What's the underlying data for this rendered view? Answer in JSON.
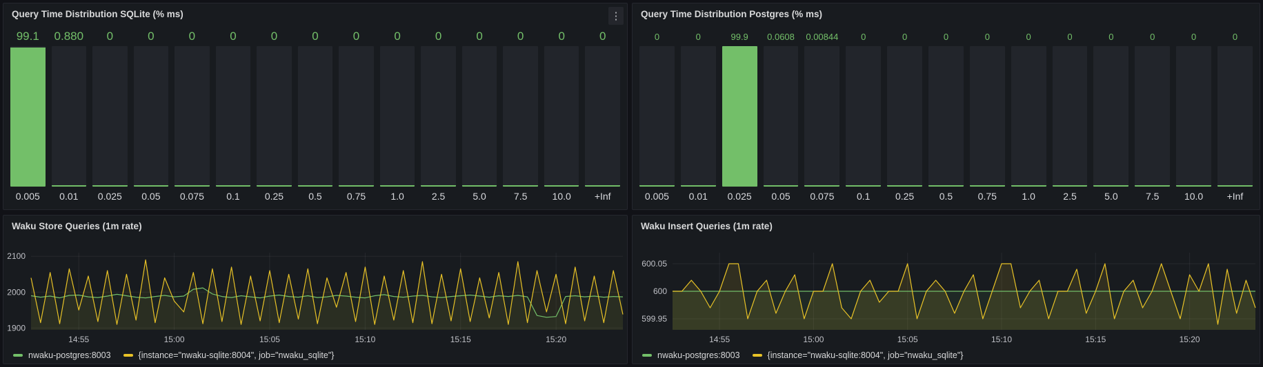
{
  "colors": {
    "green": "#73bf69",
    "yellow": "#e8c227",
    "panel_bg": "#181b1f",
    "page_bg": "#111217",
    "bar_unfilled": "#22252b",
    "value_text": "#73bf69"
  },
  "panels": [
    {
      "title": "Query Time Distribution SQLite (% ms)",
      "menu_icon": "kebab-menu-icon",
      "menu_glyph": "⋮"
    },
    {
      "title": "Query Time Distribution Postgres (% ms)"
    },
    {
      "title": "Waku Store Queries (1m rate)",
      "legend": [
        {
          "label": "nwaku-postgres:8003",
          "color": "#73bf69"
        },
        {
          "label": "{instance=\"nwaku-sqlite:8004\", job=\"nwaku_sqlite\"}",
          "color": "#e8c227"
        }
      ]
    },
    {
      "title": "Waku Insert Queries (1m rate)",
      "legend": [
        {
          "label": "nwaku-postgres:8003",
          "color": "#73bf69"
        },
        {
          "label": "{instance=\"nwaku-sqlite:8004\", job=\"nwaku_sqlite\"}",
          "color": "#e8c227"
        }
      ]
    }
  ],
  "chart_data": [
    {
      "type": "bar",
      "title": "Query Time Distribution SQLite (% ms)",
      "categories": [
        "0.005",
        "0.01",
        "0.025",
        "0.05",
        "0.075",
        "0.1",
        "0.25",
        "0.5",
        "0.75",
        "1.0",
        "2.5",
        "5.0",
        "7.5",
        "10.0",
        "+Inf"
      ],
      "values": [
        99.1,
        0.88,
        0,
        0,
        0,
        0,
        0,
        0,
        0,
        0,
        0,
        0,
        0,
        0,
        0
      ],
      "value_labels": [
        "99.1",
        "0.880",
        "0",
        "0",
        "0",
        "0",
        "0",
        "0",
        "0",
        "0",
        "0",
        "0",
        "0",
        "0",
        "0"
      ],
      "ylim": [
        0,
        100
      ],
      "bar_color": "#73bf69"
    },
    {
      "type": "bar",
      "title": "Query Time Distribution Postgres (% ms)",
      "categories": [
        "0.005",
        "0.01",
        "0.025",
        "0.05",
        "0.075",
        "0.1",
        "0.25",
        "0.5",
        "0.75",
        "1.0",
        "2.5",
        "5.0",
        "7.5",
        "10.0",
        "+Inf"
      ],
      "values": [
        0,
        0,
        99.9,
        0.0608,
        0.00844,
        0,
        0,
        0,
        0,
        0,
        0,
        0,
        0,
        0,
        0
      ],
      "value_labels": [
        "0",
        "0",
        "99.9",
        "0.0608",
        "0.00844",
        "0",
        "0",
        "0",
        "0",
        "0",
        "0",
        "0",
        "0",
        "0",
        "0"
      ],
      "ylim": [
        0,
        100
      ],
      "bar_color": "#73bf69"
    },
    {
      "type": "line",
      "title": "Waku Store Queries (1m rate)",
      "x_domain_minutes": [
        2.5,
        33.5
      ],
      "x_step_minutes": 0.5,
      "n_points": 63,
      "x_ticks": {
        "minutes": [
          5,
          10,
          15,
          20,
          25,
          30
        ],
        "labels": [
          "14:55",
          "15:00",
          "15:05",
          "15:10",
          "15:15",
          "15:20"
        ]
      },
      "y_ticks": {
        "values": [
          2100,
          2000,
          1900
        ],
        "labels": [
          "2100",
          "2000",
          "1900"
        ]
      },
      "ylim": [
        1895,
        2110
      ],
      "series": [
        {
          "name": "nwaku-postgres:8003",
          "color": "#73bf69",
          "fill_opacity": 0.05,
          "values": [
            1990,
            1986,
            1989,
            1984,
            1991,
            1992,
            1987,
            1985,
            1989,
            1994,
            1990,
            1986,
            1984,
            1988,
            1991,
            1987,
            1989,
            2008,
            2012,
            1995,
            1988,
            1985,
            1990,
            1987,
            1984,
            1989,
            1992,
            1988,
            1986,
            1990,
            1985,
            1987,
            1991,
            1989,
            1986,
            1984,
            1990,
            1993,
            1988,
            1986,
            1989,
            1991,
            1987,
            1985,
            1988,
            1990,
            1992,
            1989,
            1986,
            1990,
            1988,
            1991,
            1987,
            1935,
            1930,
            1932,
            1988,
            1990,
            1987,
            1989,
            1986,
            1988,
            1987
          ]
        },
        {
          "name": "{instance=\"nwaku-sqlite:8004\", job=\"nwaku_sqlite\"}",
          "color": "#e8c227",
          "fill_opacity": 0.07,
          "values": [
            2040,
            1915,
            2055,
            1912,
            2065,
            1950,
            2045,
            1918,
            2060,
            1910,
            2050,
            1922,
            2090,
            1915,
            2040,
            1975,
            1945,
            2055,
            1912,
            2065,
            1918,
            2070,
            1910,
            2045,
            1920,
            2060,
            1915,
            2050,
            1925,
            2065,
            1912,
            2040,
            1958,
            2055,
            1918,
            2070,
            1910,
            2045,
            1922,
            2060,
            1915,
            2085,
            1912,
            2050,
            1920,
            2065,
            1918,
            2040,
            1928,
            2055,
            1910,
            2085,
            1915,
            2060,
            1945,
            2050,
            1912,
            2070,
            1920,
            2045,
            1915,
            2060,
            1938
          ]
        }
      ]
    },
    {
      "type": "line",
      "title": "Waku Insert Queries (1m rate)",
      "x_domain_minutes": [
        2.5,
        33.5
      ],
      "x_step_minutes": 0.5,
      "n_points": 63,
      "x_ticks": {
        "minutes": [
          5,
          10,
          15,
          20,
          25,
          30
        ],
        "labels": [
          "14:55",
          "15:00",
          "15:05",
          "15:10",
          "15:15",
          "15:20"
        ]
      },
      "y_ticks": {
        "values": [
          600.05,
          600,
          599.95
        ],
        "labels": [
          "600.05",
          "600",
          "599.95"
        ]
      },
      "ylim": [
        599.93,
        600.07
      ],
      "series": [
        {
          "name": "nwaku-postgres:8003",
          "color": "#73bf69",
          "fill_opacity": 0.09,
          "flat_value": 600
        },
        {
          "name": "{instance=\"nwaku-sqlite:8004\", job=\"nwaku_sqlite\"}",
          "color": "#e8c227",
          "fill_opacity": 0.12,
          "values": [
            600,
            600,
            600.02,
            600,
            599.97,
            600,
            600.05,
            600.05,
            599.95,
            600,
            600.02,
            599.96,
            600,
            600.03,
            599.95,
            600,
            600,
            600.05,
            599.97,
            599.95,
            600,
            600.02,
            599.98,
            600,
            600,
            600.05,
            599.95,
            600,
            600.02,
            600,
            599.96,
            600,
            600.03,
            599.95,
            600,
            600.05,
            600.05,
            599.97,
            600,
            600.02,
            599.95,
            600,
            600,
            600.04,
            599.96,
            600,
            600.05,
            599.95,
            600,
            600.02,
            599.97,
            600,
            600.05,
            600,
            599.95,
            600.03,
            600,
            600.05,
            599.94,
            600.04,
            599.96,
            600.02,
            599.97
          ]
        }
      ]
    }
  ]
}
